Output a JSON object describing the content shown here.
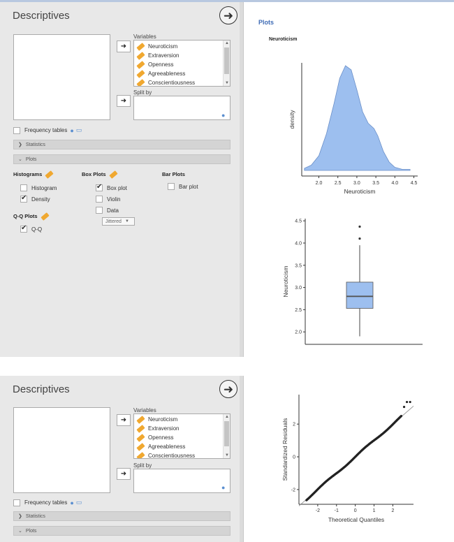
{
  "panels": [
    {
      "title": "Descriptives",
      "go_icon": "arrow-right-circle-icon",
      "variables_label": "Variables",
      "variables": [
        "Neuroticism",
        "Extraversion",
        "Openness",
        "Agreeableness",
        "Conscientiousness"
      ],
      "split_by_label": "Split by",
      "frequency_tables": "Frequency tables",
      "statistics_section": "Statistics",
      "plots_section": "Plots"
    },
    {
      "title": "Descriptives",
      "go_icon": "arrow-right-circle-icon",
      "variables_label": "Variables",
      "variables": [
        "Neuroticism",
        "Extraversion",
        "Openness",
        "Agreeableness",
        "Conscientiousness"
      ],
      "split_by_label": "Split by",
      "frequency_tables": "Frequency tables",
      "statistics_section": "Statistics",
      "plots_section": "Plots"
    }
  ],
  "plots_options": {
    "histograms": {
      "heading": "Histograms",
      "histogram": {
        "label": "Histogram",
        "checked": false
      },
      "density": {
        "label": "Density",
        "checked": true
      }
    },
    "box_plots": {
      "heading": "Box Plots",
      "box_plot": {
        "label": "Box plot",
        "checked": true
      },
      "violin": {
        "label": "Violin",
        "checked": false
      },
      "data": {
        "label": "Data",
        "checked": false
      },
      "data_mode": "Jittered"
    },
    "bar_plots": {
      "heading": "Bar Plots",
      "bar_plot": {
        "label": "Bar plot",
        "checked": false
      }
    },
    "qq_plots": {
      "heading": "Q-Q Plots",
      "qq": {
        "label": "Q-Q",
        "checked": true
      }
    }
  },
  "results": {
    "heading": "Plots",
    "subheading": "Neuroticism"
  },
  "chart_data": [
    {
      "type": "area",
      "xlabel": "Neuroticism",
      "ylabel": "density",
      "xlim": [
        1.55,
        4.6
      ],
      "x_ticks": [
        "2.0",
        "2.5",
        "3.0",
        "3.5",
        "4.0",
        "4.5"
      ],
      "x": [
        1.62,
        1.8,
        2.0,
        2.2,
        2.4,
        2.55,
        2.7,
        2.85,
        3.0,
        3.15,
        3.3,
        3.45,
        3.55,
        3.7,
        3.85,
        4.0,
        4.2,
        4.4
      ],
      "y": [
        0.02,
        0.05,
        0.14,
        0.35,
        0.64,
        0.88,
        1.0,
        0.96,
        0.77,
        0.56,
        0.45,
        0.4,
        0.33,
        0.18,
        0.08,
        0.03,
        0.01,
        0.01
      ],
      "color": "#9dbfef"
    },
    {
      "type": "box",
      "ylabel": "Neuroticism",
      "ylim": [
        1.72,
        4.55
      ],
      "y_ticks": [
        "2.0",
        "2.5",
        "3.0",
        "3.5",
        "4.0",
        "4.5"
      ],
      "q1": 2.53,
      "median": 2.8,
      "q3": 3.12,
      "whisker_low": 1.9,
      "whisker_high": 3.95,
      "outliers": [
        4.1,
        4.37
      ],
      "color": "#9dbfef"
    },
    {
      "type": "scatter",
      "xlabel": "Theoretical Quantiles",
      "ylabel": "Standardized Residuals",
      "xlim": [
        -3.0,
        3.1
      ],
      "ylim": [
        -2.9,
        3.8
      ],
      "x_ticks": [
        "-2",
        "-1",
        "0",
        "1",
        "2"
      ],
      "y_ticks": [
        "-2",
        "0",
        "2"
      ],
      "reference_line": [
        [
          -3.0,
          -3.0
        ],
        [
          3.1,
          3.1
        ]
      ],
      "points_range": [
        -2.6,
        2.45
      ],
      "extra_points": [
        [
          2.6,
          3.05
        ],
        [
          2.75,
          3.35
        ],
        [
          2.92,
          3.35
        ]
      ]
    }
  ]
}
